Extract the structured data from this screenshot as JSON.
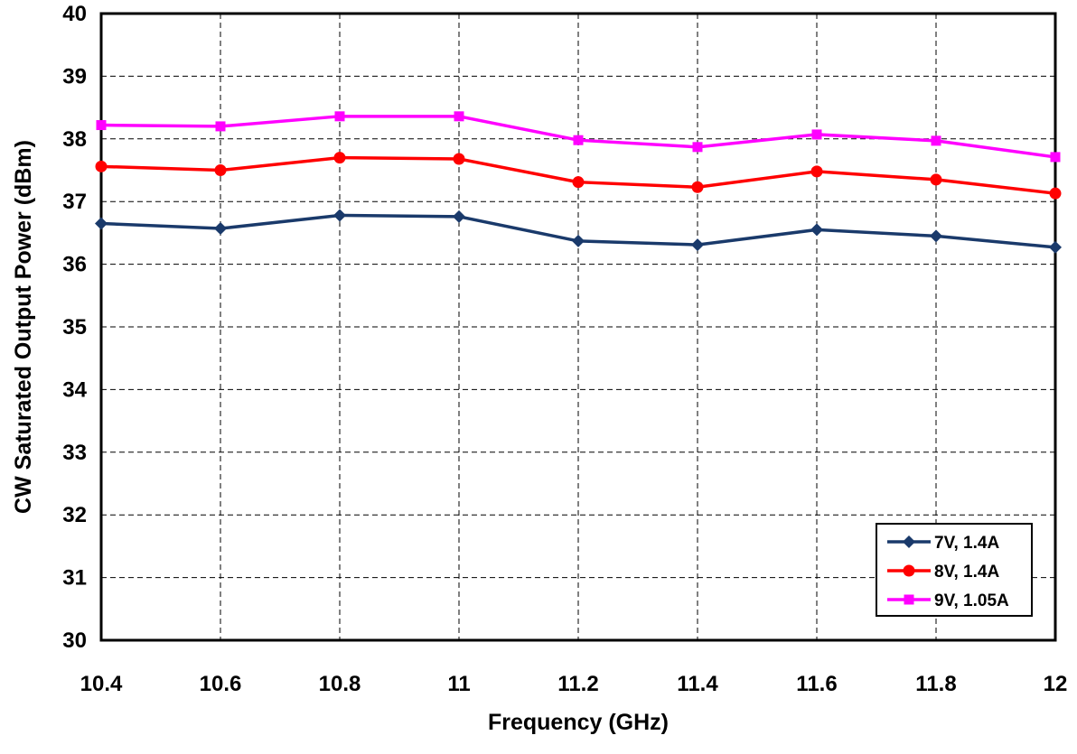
{
  "chart_data": {
    "type": "line",
    "title": "",
    "xlabel": "Frequency (GHz)",
    "ylabel": "CW Saturated Output Power (dBm)",
    "x": [
      10.4,
      10.6,
      10.8,
      11,
      11.2,
      11.4,
      11.6,
      11.8,
      12
    ],
    "x_tick_labels": [
      "10.4",
      "10.6",
      "10.8",
      "11",
      "11.2",
      "11.4",
      "11.6",
      "11.8",
      "12"
    ],
    "xlim": [
      10.4,
      12
    ],
    "ylim": [
      30,
      40
    ],
    "y_ticks": [
      30,
      31,
      32,
      33,
      34,
      35,
      36,
      37,
      38,
      39,
      40
    ],
    "y_tick_labels": [
      "30",
      "31",
      "32",
      "33",
      "34",
      "35",
      "36",
      "37",
      "38",
      "39",
      "40"
    ],
    "grid": true,
    "legend_position": "bottom-right",
    "series": [
      {
        "name": "7V, 1.4A",
        "color": "#1a3a6b",
        "marker": "diamond",
        "values": [
          36.65,
          36.57,
          36.78,
          36.76,
          36.37,
          36.31,
          36.55,
          36.45,
          36.27
        ]
      },
      {
        "name": "8V, 1.4A",
        "color": "#ff0000",
        "marker": "circle",
        "values": [
          37.56,
          37.5,
          37.7,
          37.68,
          37.31,
          37.23,
          37.48,
          37.35,
          37.13
        ]
      },
      {
        "name": "9V, 1.05A",
        "color": "#ff00ff",
        "marker": "square",
        "values": [
          38.22,
          38.2,
          38.36,
          38.36,
          37.98,
          37.87,
          38.07,
          37.97,
          37.71
        ]
      }
    ]
  }
}
